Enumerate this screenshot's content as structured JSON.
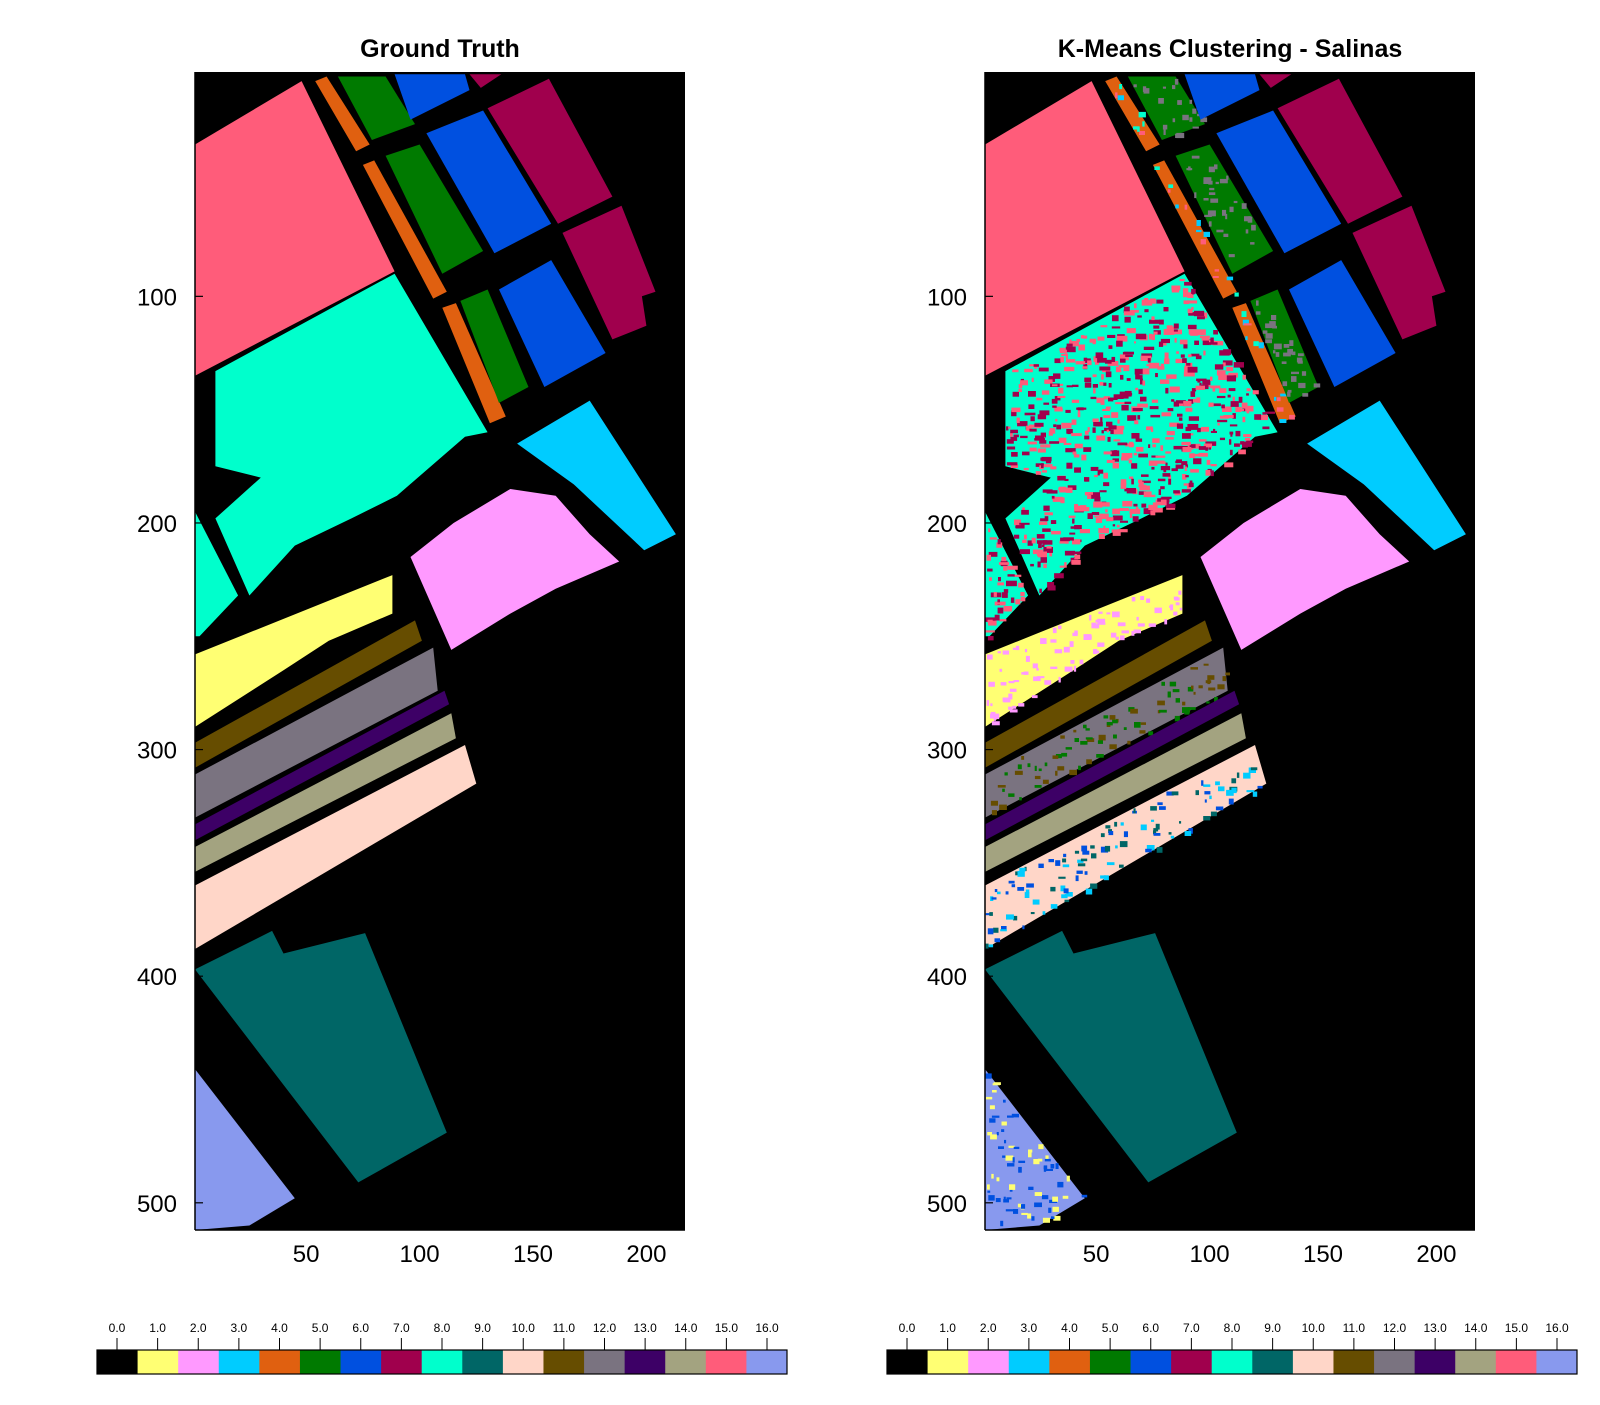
{
  "chart_data": [
    {
      "type": "heatmap",
      "title": "Ground Truth",
      "xlabel": "",
      "ylabel": "",
      "xlim": [
        1,
        217
      ],
      "ylim": [
        512,
        1
      ],
      "xticks": [
        50,
        100,
        150,
        200
      ],
      "yticks": [
        100,
        200,
        300,
        400,
        500
      ],
      "grid": false,
      "colorbar": {
        "position": "bottom",
        "min": 0,
        "max": 16,
        "ticks": [
          "0.0",
          "1.0",
          "2.0",
          "3.0",
          "4.0",
          "5.0",
          "6.0",
          "7.0",
          "8.0",
          "9.0",
          "10.0",
          "11.0",
          "12.0",
          "13.0",
          "14.0",
          "15.0",
          "16.0"
        ]
      }
    },
    {
      "type": "heatmap",
      "title": "K-Means Clustering - Salinas",
      "xlabel": "",
      "ylabel": "",
      "xlim": [
        1,
        217
      ],
      "ylim": [
        512,
        1
      ],
      "xticks": [
        50,
        100,
        150,
        200
      ],
      "yticks": [
        100,
        200,
        300,
        400,
        500
      ],
      "grid": false,
      "colorbar": {
        "position": "bottom",
        "min": 0,
        "max": 16,
        "ticks": [
          "0.0",
          "1.0",
          "2.0",
          "3.0",
          "4.0",
          "5.0",
          "6.0",
          "7.0",
          "8.0",
          "9.0",
          "10.0",
          "11.0",
          "12.0",
          "13.0",
          "14.0",
          "15.0",
          "16.0"
        ]
      }
    }
  ],
  "class_colors": [
    "#000000",
    "#ffff73",
    "#ff99ff",
    "#00ccff",
    "#e06010",
    "#007a00",
    "#0050e0",
    "#a0004d",
    "#00ffcc",
    "#006666",
    "#ffd6c8",
    "#664d00",
    "#7a7380",
    "#3d0066",
    "#a3a380",
    "#ff5c7a",
    "#8899ee"
  ],
  "regions": [
    {
      "cls": 15,
      "pts": [
        [
          1,
          33
        ],
        [
          48,
          5
        ],
        [
          89,
          89
        ],
        [
          1,
          135
        ]
      ]
    },
    {
      "cls": 8,
      "pts": [
        [
          10,
          133
        ],
        [
          89,
          90
        ],
        [
          130,
          160
        ],
        [
          120,
          162
        ],
        [
          90,
          188
        ],
        [
          70,
          198
        ],
        [
          45,
          210
        ],
        [
          25,
          232
        ],
        [
          10,
          198
        ],
        [
          30,
          180
        ],
        [
          10,
          175
        ]
      ]
    },
    {
      "cls": 8,
      "pts": [
        [
          1,
          195
        ],
        [
          20,
          232
        ],
        [
          3,
          250
        ],
        [
          1,
          250
        ]
      ]
    },
    {
      "cls": 4,
      "pts": [
        [
          54,
          5
        ],
        [
          59,
          3
        ],
        [
          78,
          33
        ],
        [
          72,
          36
        ]
      ]
    },
    {
      "cls": 4,
      "pts": [
        [
          75,
          42
        ],
        [
          80,
          40
        ],
        [
          112,
          98
        ],
        [
          106,
          101
        ]
      ]
    },
    {
      "cls": 4,
      "pts": [
        [
          110,
          105
        ],
        [
          116,
          103
        ],
        [
          138,
          153
        ],
        [
          131,
          156
        ]
      ]
    },
    {
      "cls": 5,
      "pts": [
        [
          64,
          3
        ],
        [
          85,
          3
        ],
        [
          98,
          24
        ],
        [
          79,
          31
        ]
      ]
    },
    {
      "cls": 5,
      "pts": [
        [
          85,
          38
        ],
        [
          100,
          33
        ],
        [
          128,
          80
        ],
        [
          110,
          90
        ]
      ]
    },
    {
      "cls": 5,
      "pts": [
        [
          118,
          102
        ],
        [
          130,
          97
        ],
        [
          148,
          140
        ],
        [
          135,
          147
        ]
      ]
    },
    {
      "cls": 6,
      "pts": [
        [
          89,
          2
        ],
        [
          120,
          2
        ],
        [
          122,
          9
        ],
        [
          96,
          22
        ]
      ]
    },
    {
      "cls": 6,
      "pts": [
        [
          103,
          28
        ],
        [
          128,
          18
        ],
        [
          158,
          68
        ],
        [
          133,
          81
        ]
      ]
    },
    {
      "cls": 6,
      "pts": [
        [
          135,
          97
        ],
        [
          158,
          84
        ],
        [
          182,
          125
        ],
        [
          155,
          140
        ]
      ]
    },
    {
      "cls": 7,
      "pts": [
        [
          122,
          2
        ],
        [
          136,
          2
        ],
        [
          127,
          8
        ]
      ]
    },
    {
      "cls": 7,
      "pts": [
        [
          130,
          17
        ],
        [
          157,
          4
        ],
        [
          185,
          56
        ],
        [
          161,
          68
        ]
      ]
    },
    {
      "cls": 7,
      "pts": [
        [
          163,
          72
        ],
        [
          189,
          60
        ],
        [
          204,
          98
        ],
        [
          198,
          100
        ],
        [
          200,
          113
        ],
        [
          185,
          119
        ]
      ]
    },
    {
      "cls": 3,
      "pts": [
        [
          143,
          165
        ],
        [
          175,
          146
        ],
        [
          213,
          205
        ],
        [
          199,
          212
        ],
        [
          168,
          183
        ]
      ]
    },
    {
      "cls": 2,
      "pts": [
        [
          96,
          215
        ],
        [
          115,
          200
        ],
        [
          140,
          185
        ],
        [
          160,
          188
        ],
        [
          175,
          205
        ],
        [
          188,
          217
        ],
        [
          160,
          229
        ],
        [
          140,
          240
        ],
        [
          114,
          256
        ]
      ]
    },
    {
      "cls": 1,
      "pts": [
        [
          1,
          258
        ],
        [
          88,
          223
        ],
        [
          88,
          240
        ],
        [
          60,
          252
        ],
        [
          40,
          265
        ],
        [
          1,
          290
        ]
      ]
    },
    {
      "cls": 11,
      "pts": [
        [
          1,
          297
        ],
        [
          98,
          243
        ],
        [
          101,
          252
        ],
        [
          1,
          308
        ]
      ]
    },
    {
      "cls": 12,
      "pts": [
        [
          1,
          311
        ],
        [
          106,
          255
        ],
        [
          108,
          274
        ],
        [
          1,
          330
        ]
      ]
    },
    {
      "cls": 13,
      "pts": [
        [
          1,
          333
        ],
        [
          111,
          274
        ],
        [
          113,
          280
        ],
        [
          1,
          340
        ]
      ]
    },
    {
      "cls": 14,
      "pts": [
        [
          1,
          343
        ],
        [
          114,
          284
        ],
        [
          116,
          295
        ],
        [
          1,
          354
        ]
      ]
    },
    {
      "cls": 10,
      "pts": [
        [
          1,
          360
        ],
        [
          120,
          298
        ],
        [
          125,
          315
        ],
        [
          1,
          388
        ]
      ]
    },
    {
      "cls": 9,
      "pts": [
        [
          1,
          397
        ],
        [
          35,
          380
        ],
        [
          40,
          390
        ],
        [
          76,
          381
        ],
        [
          112,
          469
        ],
        [
          73,
          491
        ]
      ]
    },
    {
      "cls": 16,
      "pts": [
        [
          1,
          441
        ],
        [
          45,
          498
        ],
        [
          25,
          510
        ],
        [
          1,
          512
        ]
      ]
    }
  ],
  "noise": {
    "8": [
      7,
      15
    ],
    "1": [
      2
    ],
    "12": [
      5,
      11
    ],
    "10": [
      3,
      9,
      6
    ],
    "16": [
      1,
      6
    ],
    "5": [
      12
    ],
    "4": [
      3,
      15,
      8
    ]
  },
  "colorbar_ticks": [
    "0.0",
    "1.0",
    "2.0",
    "3.0",
    "4.0",
    "5.0",
    "6.0",
    "7.0",
    "8.0",
    "9.0",
    "10.0",
    "11.0",
    "12.0",
    "13.0",
    "14.0",
    "15.0",
    "16.0"
  ]
}
